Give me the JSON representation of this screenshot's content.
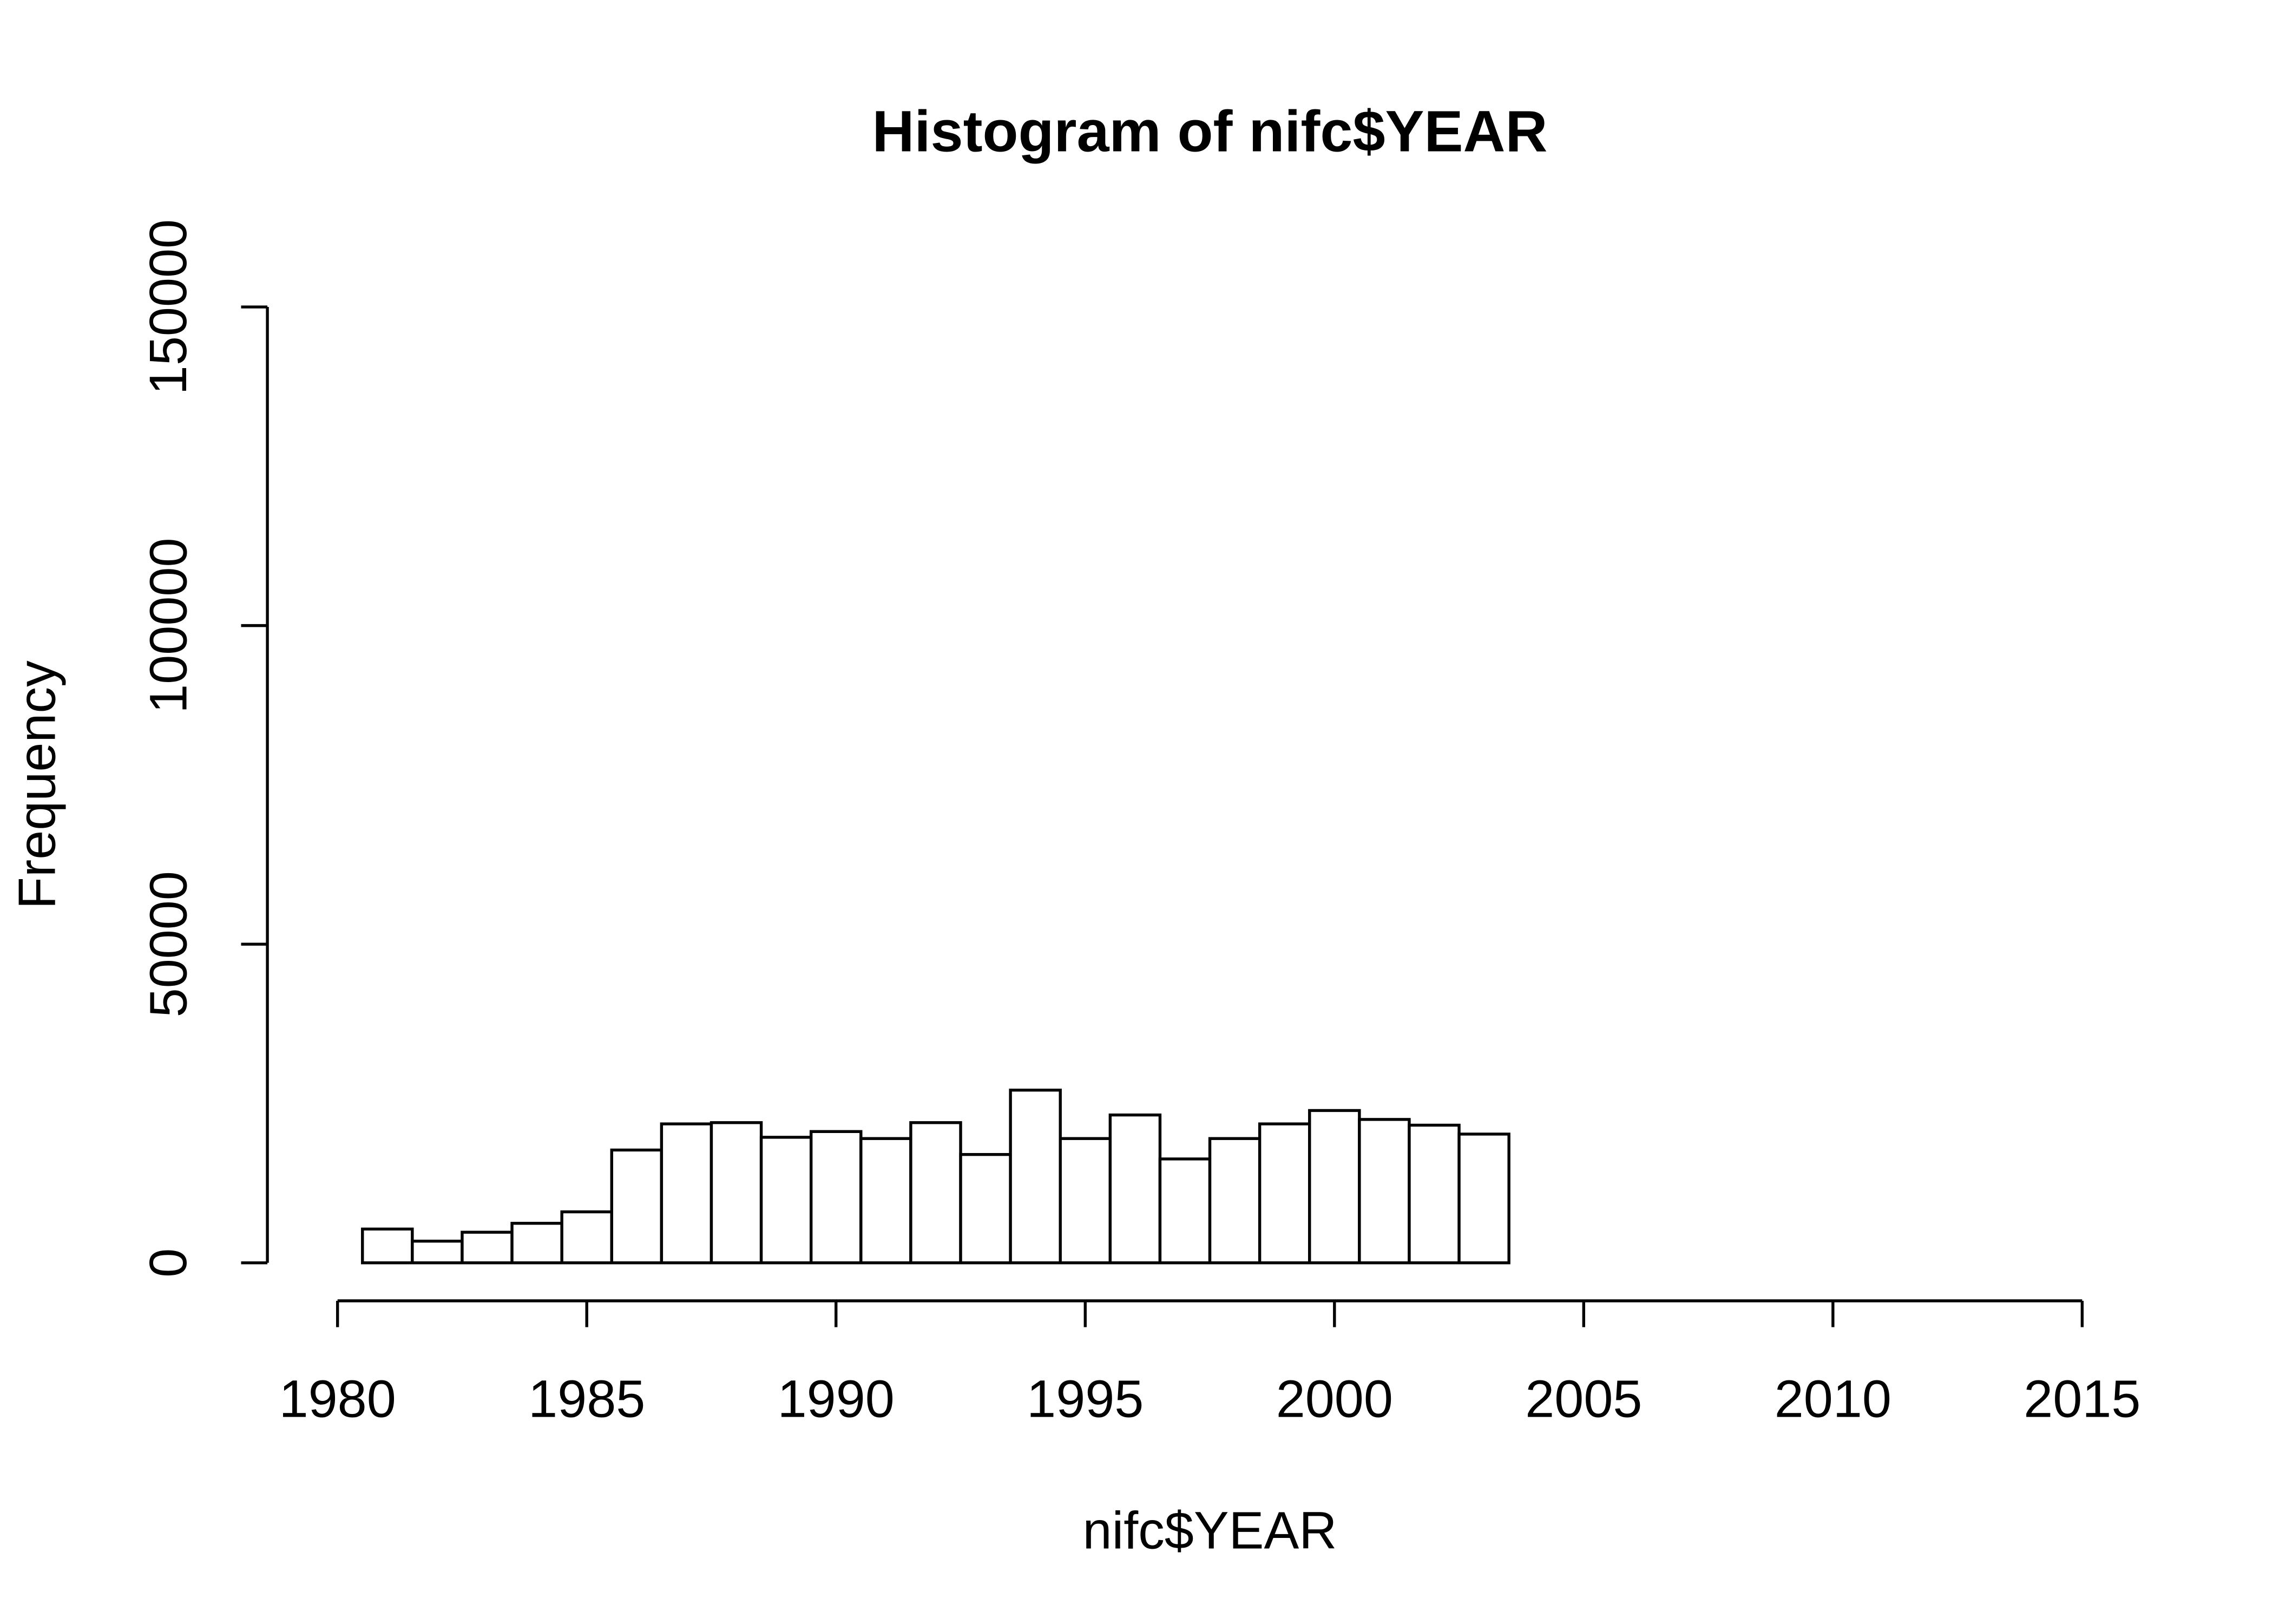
{
  "chart_data": {
    "type": "histogram",
    "title": "Histogram of nifc$YEAR",
    "x_label": "nifc$YEAR",
    "y_label": "Frequency",
    "bins": [
      1979.5,
      1980.5,
      1981.5,
      1982.5,
      1983.5,
      1984.5,
      1985.5,
      1986.5,
      1987.5,
      1988.5,
      1989.5,
      1990.5,
      1991.5,
      1992.5,
      1993.5,
      1994.5,
      1995.5,
      1996.5,
      1997.5,
      1998.5,
      1999.5,
      2000.5,
      2001.5,
      2002.5,
      2003.5,
      2004.5,
      2005.5,
      2006.5,
      2007.5,
      2008.5,
      2009.5,
      2010.5,
      2011.5,
      2012.5,
      2013.5,
      2014.5
    ],
    "values": [
      0,
      5300,
      3400,
      4800,
      6200,
      8000,
      17700,
      21800,
      22000,
      19700,
      20600,
      19500,
      22000,
      17000,
      27100,
      19500,
      23200,
      16300,
      19500,
      21800,
      23900,
      22500,
      21600,
      20200,
      0,
      0,
      0,
      0,
      0,
      0,
      0,
      0,
      0,
      0,
      0
    ],
    "color": "#ffffff",
    "xlim": [
      1980,
      2015
    ],
    "xticks": [
      1980,
      1985,
      1990,
      1995,
      2000,
      2005,
      2010,
      2015
    ],
    "ylim": [
      0,
      150000
    ],
    "yticks": [
      0,
      50000,
      100000,
      150000
    ]
  }
}
